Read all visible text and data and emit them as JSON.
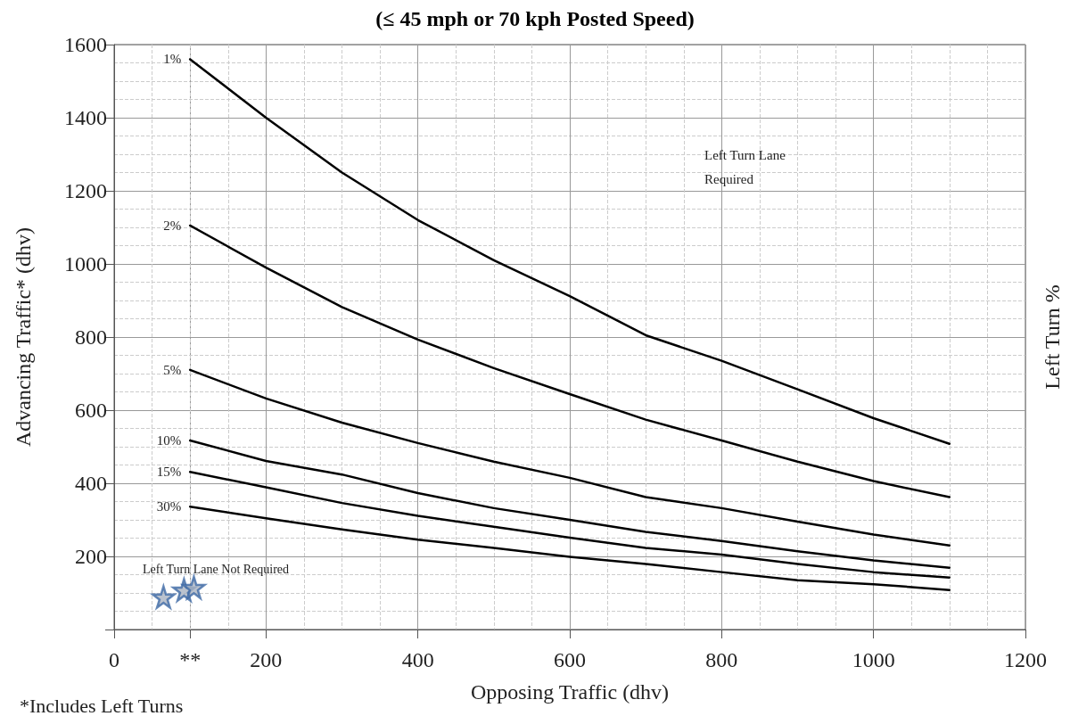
{
  "chart_data": {
    "type": "line",
    "title": "(≤ 45 mph or 70 kph Posted Speed)",
    "xlabel": "Opposing Traffic (dhv)",
    "ylabel": "Advancing Traffic* (dhv)",
    "y2label": "Left Turn %",
    "annotations": [
      "Left Turn Lane Required",
      "Left Turn Lane Not Required",
      "*Includes Left Turns"
    ],
    "xlim": [
      0,
      1200
    ],
    "xticks": [
      0,
      {
        "value": 100,
        "label": "**"
      },
      200,
      400,
      600,
      800,
      1000,
      1200
    ],
    "ylim": [
      0,
      1600
    ],
    "yticks": [
      {
        "value": 0,
        "label": null
      },
      200,
      400,
      600,
      800,
      1000,
      1200,
      1400,
      1600
    ],
    "grid": true,
    "legend": false,
    "marker": "none",
    "line_style": "solid",
    "x": [
      100,
      200,
      300,
      400,
      500,
      600,
      700,
      800,
      900,
      1000,
      1100
    ],
    "series": [
      {
        "name": "1%",
        "color": "#000000",
        "values": [
          1560,
          1400,
          1250,
          1120,
          1010,
          912,
          805,
          735,
          657,
          578,
          508
        ]
      },
      {
        "name": "2%",
        "color": "#000000",
        "values": [
          1105,
          990,
          882,
          793,
          715,
          644,
          574,
          517,
          459,
          406,
          362
        ]
      },
      {
        "name": "5%",
        "color": "#000000",
        "values": [
          710,
          632,
          566,
          510,
          459,
          415,
          362,
          332,
          295,
          260,
          230
        ]
      },
      {
        "name": "10%",
        "color": "#000000",
        "values": [
          517,
          461,
          424,
          373,
          332,
          300,
          267,
          242,
          214,
          189,
          169
        ]
      },
      {
        "name": "15%",
        "color": "#000000",
        "values": [
          431,
          389,
          346,
          311,
          281,
          251,
          223,
          205,
          179,
          157,
          142
        ]
      },
      {
        "name": "30%",
        "color": "#000000",
        "values": [
          336,
          304,
          274,
          246,
          223,
          199,
          179,
          157,
          135,
          124,
          108
        ]
      },
      {
        "type": "scatter",
        "marker": "star",
        "color": "#3f6aa6",
        "x": [
          65,
          92,
          105
        ],
        "values": [
          89,
          108,
          115
        ]
      }
    ]
  }
}
